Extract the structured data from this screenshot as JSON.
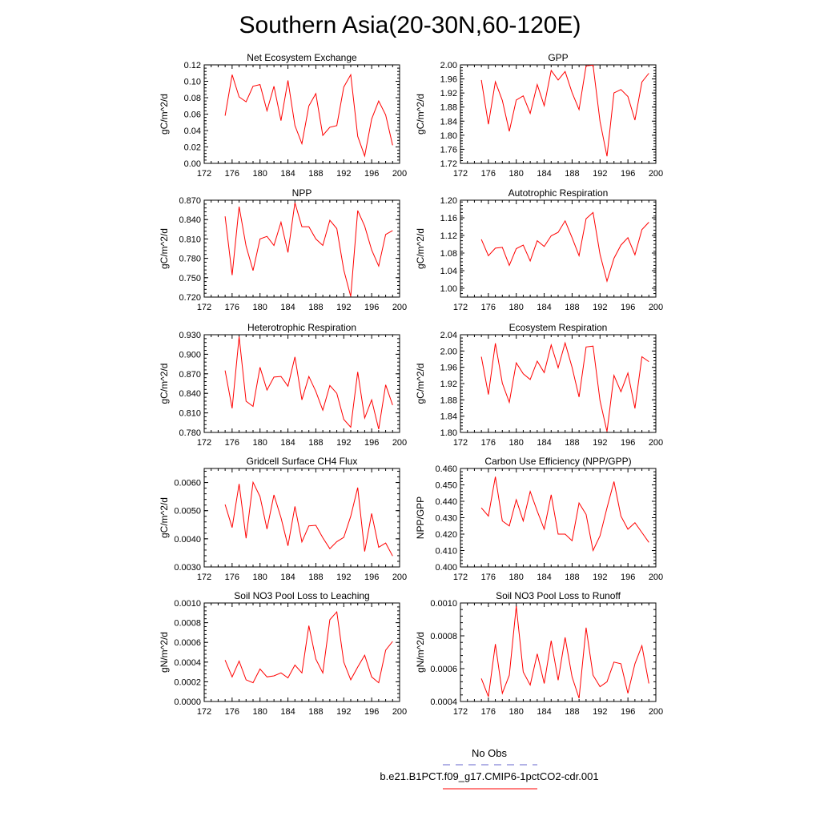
{
  "figure": {
    "title": "Southern Asia(20-30N,60-120E)"
  },
  "legend": {
    "items": [
      {
        "label": "No Obs",
        "color": "#6666cc",
        "style": "dashed"
      },
      {
        "label": "b.e21.B1PCT.f09_g17.CMIP6-1pctCO2-cdr.001",
        "color": "#ff0000",
        "style": "solid"
      }
    ]
  },
  "chart_data": [
    {
      "type": "line",
      "title": "Net Ecosystem Exchange",
      "xlabel": "",
      "ylabel": "gC/m^2/d",
      "xlim": [
        172,
        200
      ],
      "xticks": [
        "172",
        "176",
        "180",
        "184",
        "188",
        "192",
        "196",
        "200"
      ],
      "ylim": [
        0.0,
        0.12
      ],
      "yticks": [
        "0.00",
        "0.02",
        "0.04",
        "0.06",
        "0.08",
        "0.10",
        "0.12"
      ],
      "grid": false,
      "series": [
        {
          "color": "#ff0000",
          "x": [
            175,
            176,
            177,
            178,
            179,
            180,
            181,
            182,
            183,
            184,
            185,
            186,
            187,
            188,
            189,
            190,
            191,
            192,
            193,
            194,
            195,
            196,
            197,
            198,
            199
          ],
          "y": [
            0.058,
            0.108,
            0.081,
            0.075,
            0.094,
            0.096,
            0.064,
            0.094,
            0.052,
            0.101,
            0.046,
            0.024,
            0.07,
            0.085,
            0.034,
            0.044,
            0.046,
            0.093,
            0.108,
            0.033,
            0.009,
            0.054,
            0.076,
            0.059,
            0.022
          ]
        }
      ]
    },
    {
      "type": "line",
      "title": "GPP",
      "xlabel": "",
      "ylabel": "gC/m^2/d",
      "xlim": [
        172,
        200
      ],
      "xticks": [
        "172",
        "176",
        "180",
        "184",
        "188",
        "192",
        "196",
        "200"
      ],
      "ylim": [
        1.72,
        2.0
      ],
      "yticks": [
        "1.72",
        "1.76",
        "1.80",
        "1.84",
        "1.88",
        "1.92",
        "1.96",
        "2.00"
      ],
      "grid": false,
      "series": [
        {
          "color": "#ff0000",
          "x": [
            175,
            176,
            177,
            178,
            179,
            180,
            181,
            182,
            183,
            184,
            185,
            186,
            187,
            188,
            189,
            190,
            191,
            192,
            193,
            194,
            195,
            196,
            197,
            198,
            199
          ],
          "y": [
            1.957,
            1.831,
            1.952,
            1.899,
            1.811,
            1.9,
            1.912,
            1.862,
            1.944,
            1.884,
            1.984,
            1.957,
            1.981,
            1.921,
            1.873,
            1.997,
            1.999,
            1.839,
            1.74,
            1.92,
            1.93,
            1.91,
            1.843,
            1.951,
            1.976
          ]
        }
      ]
    },
    {
      "type": "line",
      "title": "NPP",
      "xlabel": "",
      "ylabel": "gC/m^2/d",
      "xlim": [
        172,
        200
      ],
      "xticks": [
        "172",
        "176",
        "180",
        "184",
        "188",
        "192",
        "196",
        "200"
      ],
      "ylim": [
        0.72,
        0.87
      ],
      "yticks": [
        "0.720",
        "0.750",
        "0.780",
        "0.810",
        "0.840",
        "0.870"
      ],
      "grid": false,
      "series": [
        {
          "color": "#ff0000",
          "x": [
            175,
            176,
            177,
            178,
            179,
            180,
            181,
            182,
            183,
            184,
            185,
            186,
            187,
            188,
            189,
            190,
            191,
            192,
            193,
            194,
            195,
            196,
            197,
            198,
            199
          ],
          "y": [
            0.845,
            0.754,
            0.86,
            0.799,
            0.761,
            0.81,
            0.814,
            0.8,
            0.836,
            0.789,
            0.866,
            0.829,
            0.829,
            0.81,
            0.8,
            0.839,
            0.826,
            0.762,
            0.721,
            0.854,
            0.83,
            0.793,
            0.768,
            0.817,
            0.823
          ]
        }
      ]
    },
    {
      "type": "line",
      "title": "Autotrophic Respiration",
      "xlabel": "",
      "ylabel": "gC/m^2/d",
      "xlim": [
        172,
        200
      ],
      "xticks": [
        "172",
        "176",
        "180",
        "184",
        "188",
        "192",
        "196",
        "200"
      ],
      "ylim": [
        0.98,
        1.2
      ],
      "yticks": [
        "1.00",
        "1.04",
        "1.08",
        "1.12",
        "1.16",
        "1.20"
      ],
      "grid": false,
      "series": [
        {
          "color": "#ff0000",
          "x": [
            175,
            176,
            177,
            178,
            179,
            180,
            181,
            182,
            183,
            184,
            185,
            186,
            187,
            188,
            189,
            190,
            191,
            192,
            193,
            194,
            195,
            196,
            197,
            198,
            199
          ],
          "y": [
            1.111,
            1.074,
            1.091,
            1.093,
            1.052,
            1.09,
            1.098,
            1.062,
            1.108,
            1.095,
            1.119,
            1.127,
            1.153,
            1.115,
            1.074,
            1.158,
            1.172,
            1.077,
            1.016,
            1.068,
            1.098,
            1.115,
            1.076,
            1.133,
            1.15
          ]
        }
      ]
    },
    {
      "type": "line",
      "title": "Heterotrophic Respiration",
      "xlabel": "",
      "ylabel": "gC/m^2/d",
      "xlim": [
        172,
        200
      ],
      "xticks": [
        "172",
        "176",
        "180",
        "184",
        "188",
        "192",
        "196",
        "200"
      ],
      "ylim": [
        0.78,
        0.93
      ],
      "yticks": [
        "0.780",
        "0.810",
        "0.840",
        "0.870",
        "0.900",
        "0.930"
      ],
      "grid": false,
      "series": [
        {
          "color": "#ff0000",
          "x": [
            175,
            176,
            177,
            178,
            179,
            180,
            181,
            182,
            183,
            184,
            185,
            186,
            187,
            188,
            189,
            190,
            191,
            192,
            193,
            194,
            195,
            196,
            197,
            198,
            199
          ],
          "y": [
            0.875,
            0.817,
            0.927,
            0.828,
            0.82,
            0.88,
            0.845,
            0.865,
            0.866,
            0.851,
            0.896,
            0.83,
            0.866,
            0.843,
            0.814,
            0.852,
            0.84,
            0.8,
            0.788,
            0.873,
            0.802,
            0.83,
            0.785,
            0.853,
            0.822
          ]
        }
      ]
    },
    {
      "type": "line",
      "title": "Ecosystem Respiration",
      "xlabel": "",
      "ylabel": "gC/m^2/d",
      "xlim": [
        172,
        200
      ],
      "xticks": [
        "172",
        "176",
        "180",
        "184",
        "188",
        "192",
        "196",
        "200"
      ],
      "ylim": [
        1.8,
        2.04
      ],
      "yticks": [
        "1.80",
        "1.84",
        "1.88",
        "1.92",
        "1.96",
        "2.00",
        "2.04"
      ],
      "grid": false,
      "series": [
        {
          "color": "#ff0000",
          "x": [
            175,
            176,
            177,
            178,
            179,
            180,
            181,
            182,
            183,
            184,
            185,
            186,
            187,
            188,
            189,
            190,
            191,
            192,
            193,
            194,
            195,
            196,
            197,
            198,
            199
          ],
          "y": [
            1.986,
            1.893,
            2.019,
            1.921,
            1.874,
            1.971,
            1.944,
            1.93,
            1.975,
            1.947,
            2.015,
            1.959,
            2.02,
            1.96,
            1.887,
            2.01,
            2.012,
            1.878,
            1.802,
            1.94,
            1.9,
            1.946,
            1.859,
            1.986,
            1.974
          ]
        }
      ]
    },
    {
      "type": "line",
      "title": "Gridcell Surface CH4 Flux",
      "xlabel": "",
      "ylabel": "gC/m^2/d",
      "xlim": [
        172,
        200
      ],
      "xticks": [
        "172",
        "176",
        "180",
        "184",
        "188",
        "192",
        "196",
        "200"
      ],
      "ylim": [
        0.003,
        0.0065
      ],
      "yticks": [
        "0.0030",
        "0.0040",
        "0.0050",
        "0.0060"
      ],
      "grid": false,
      "series": [
        {
          "color": "#ff0000",
          "x": [
            175,
            176,
            177,
            178,
            179,
            180,
            181,
            182,
            183,
            184,
            185,
            186,
            187,
            188,
            189,
            190,
            191,
            192,
            193,
            194,
            195,
            196,
            197,
            198,
            199
          ],
          "y": [
            0.00522,
            0.0044,
            0.00595,
            0.00402,
            0.00601,
            0.0055,
            0.00435,
            0.00556,
            0.00475,
            0.00375,
            0.00515,
            0.00389,
            0.00446,
            0.00448,
            0.00404,
            0.00365,
            0.0039,
            0.00405,
            0.0048,
            0.00582,
            0.00355,
            0.0049,
            0.0037,
            0.00385,
            0.00339
          ]
        }
      ]
    },
    {
      "type": "line",
      "title": "Carbon Use Efficiency (NPP/GPP)",
      "xlabel": "",
      "ylabel": "NPP/GPP",
      "xlim": [
        172,
        200
      ],
      "xticks": [
        "172",
        "176",
        "180",
        "184",
        "188",
        "192",
        "196",
        "200"
      ],
      "ylim": [
        0.4,
        0.46
      ],
      "yticks": [
        "0.400",
        "0.410",
        "0.420",
        "0.430",
        "0.440",
        "0.450",
        "0.460"
      ],
      "grid": false,
      "series": [
        {
          "color": "#ff0000",
          "x": [
            175,
            176,
            177,
            178,
            179,
            180,
            181,
            182,
            183,
            184,
            185,
            186,
            187,
            188,
            189,
            190,
            191,
            192,
            193,
            194,
            195,
            196,
            197,
            198,
            199
          ],
          "y": [
            0.436,
            0.431,
            0.455,
            0.428,
            0.425,
            0.441,
            0.428,
            0.446,
            0.434,
            0.423,
            0.444,
            0.42,
            0.42,
            0.416,
            0.439,
            0.432,
            0.41,
            0.419,
            0.436,
            0.452,
            0.431,
            0.423,
            0.427,
            0.421,
            0.415
          ]
        }
      ]
    },
    {
      "type": "line",
      "title": "Soil NO3 Pool Loss to Leaching",
      "xlabel": "",
      "ylabel": "gN/m^2/d",
      "xlim": [
        172,
        200
      ],
      "xticks": [
        "172",
        "176",
        "180",
        "184",
        "188",
        "192",
        "196",
        "200"
      ],
      "ylim": [
        0.0,
        0.001
      ],
      "yticks": [
        "0.0000",
        "0.0002",
        "0.0004",
        "0.0006",
        "0.0008",
        "0.0010"
      ],
      "grid": false,
      "series": [
        {
          "color": "#ff0000",
          "x": [
            175,
            176,
            177,
            178,
            179,
            180,
            181,
            182,
            183,
            184,
            185,
            186,
            187,
            188,
            189,
            190,
            191,
            192,
            193,
            194,
            195,
            196,
            197,
            198,
            199
          ],
          "y": [
            0.00042,
            0.00025,
            0.00041,
            0.00022,
            0.00019,
            0.00033,
            0.00025,
            0.00026,
            0.00029,
            0.00024,
            0.00037,
            0.00029,
            0.00077,
            0.00043,
            0.00029,
            0.00083,
            0.00091,
            0.0004,
            0.00022,
            0.00035,
            0.00047,
            0.00025,
            0.00019,
            0.00052,
            0.00061
          ]
        }
      ]
    },
    {
      "type": "line",
      "title": "Soil NO3 Pool Loss to Runoff",
      "xlabel": "",
      "ylabel": "gN/m^2/d",
      "xlim": [
        172,
        200
      ],
      "xticks": [
        "172",
        "176",
        "180",
        "184",
        "188",
        "192",
        "196",
        "200"
      ],
      "ylim": [
        0.0004,
        0.001
      ],
      "yticks": [
        "0.0004",
        "0.0006",
        "0.0008",
        "0.0010"
      ],
      "grid": false,
      "series": [
        {
          "color": "#ff0000",
          "x": [
            175,
            176,
            177,
            178,
            179,
            180,
            181,
            182,
            183,
            184,
            185,
            186,
            187,
            188,
            189,
            190,
            191,
            192,
            193,
            194,
            195,
            196,
            197,
            198,
            199
          ],
          "y": [
            0.00054,
            0.00043,
            0.00075,
            0.00045,
            0.00056,
            0.00098,
            0.00058,
            0.0005,
            0.00069,
            0.00051,
            0.00077,
            0.00053,
            0.00079,
            0.00055,
            0.00042,
            0.00085,
            0.00056,
            0.00049,
            0.00052,
            0.00064,
            0.00063,
            0.00045,
            0.00063,
            0.00074,
            0.00051
          ]
        }
      ]
    }
  ]
}
